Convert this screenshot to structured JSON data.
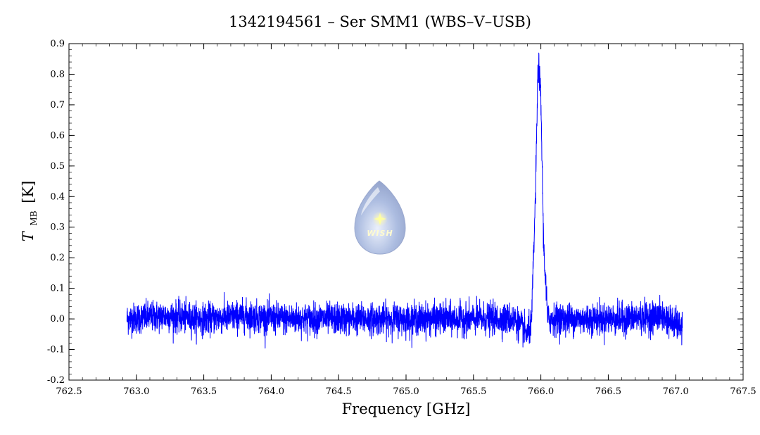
{
  "chart_data": {
    "type": "line",
    "title": "1342194561 – Ser SMM1 (WBS–V–USB)",
    "xlabel": "Frequency [GHz]",
    "ylabel_symbol": "T",
    "ylabel_subscript": "MB",
    "ylabel_unit": "[K]",
    "xlim": [
      762.5,
      767.5
    ],
    "ylim": [
      -0.2,
      0.9
    ],
    "x_ticks": [
      "762.5",
      "763.0",
      "763.5",
      "764.0",
      "764.5",
      "765.0",
      "765.5",
      "766.0",
      "766.5",
      "767.0",
      "767.5"
    ],
    "y_ticks": [
      "-0.2",
      "-0.1",
      "0.0",
      "0.1",
      "0.2",
      "0.3",
      "0.4",
      "0.5",
      "0.6",
      "0.7",
      "0.8",
      "0.9"
    ],
    "grid": false,
    "line_color": "#0000ff",
    "series": [
      {
        "x": [
          762.93,
          763.2,
          763.5,
          763.8,
          764.1,
          764.4,
          764.7,
          765.0,
          765.3,
          765.6,
          765.8,
          765.9,
          765.93,
          765.96,
          765.98,
          766.0,
          766.02,
          766.05,
          766.1,
          766.3,
          766.6,
          766.9,
          767.05
        ],
        "y": [
          0.0,
          0.01,
          0.0,
          0.01,
          0.0,
          0.0,
          0.0,
          0.0,
          0.0,
          0.0,
          0.0,
          -0.05,
          -0.02,
          0.4,
          0.85,
          0.72,
          0.25,
          0.0,
          0.0,
          0.0,
          0.0,
          0.01,
          -0.03
        ],
        "noise_rms": 0.025
      }
    ],
    "logo_text": "WISH"
  }
}
